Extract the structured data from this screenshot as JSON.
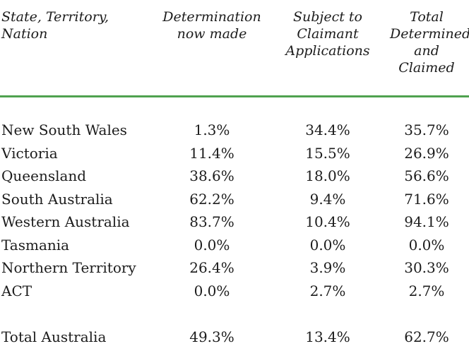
{
  "page": {
    "background_color": "#ffffff",
    "text_color": "#1c1c1c",
    "divider_color": "#4FA24F"
  },
  "table": {
    "headers": {
      "col1": "State, Territory,\nNation",
      "col2": "Determination\nnow made",
      "col3": "Subject to\nClaimant\nApplications",
      "col4": "Total\nDetermined\nand\nClaimed"
    },
    "rows": [
      {
        "name": "New South Wales",
        "determined": "1.3%",
        "claimant": "34.4%",
        "total": "35.7%"
      },
      {
        "name": "Victoria",
        "determined": "11.4%",
        "claimant": "15.5%",
        "total": "26.9%"
      },
      {
        "name": "Queensland",
        "determined": "38.6%",
        "claimant": "18.0%",
        "total": "56.6%"
      },
      {
        "name": "South Australia",
        "determined": "62.2%",
        "claimant": "9.4%",
        "total": "71.6%"
      },
      {
        "name": "Western Australia",
        "determined": "83.7%",
        "claimant": "10.4%",
        "total": "94.1%"
      },
      {
        "name": "Tasmania",
        "determined": "0.0%",
        "claimant": "0.0%",
        "total": "0.0%"
      },
      {
        "name": "Northern Territory",
        "determined": "26.4%",
        "claimant": "3.9%",
        "total": "30.3%"
      },
      {
        "name": "ACT",
        "determined": "0.0%",
        "claimant": "2.7%",
        "total": "2.7%"
      }
    ],
    "total_row": {
      "name": "Total Australia",
      "determined": "49.3%",
      "claimant": "13.4%",
      "total": "62.7%"
    }
  }
}
